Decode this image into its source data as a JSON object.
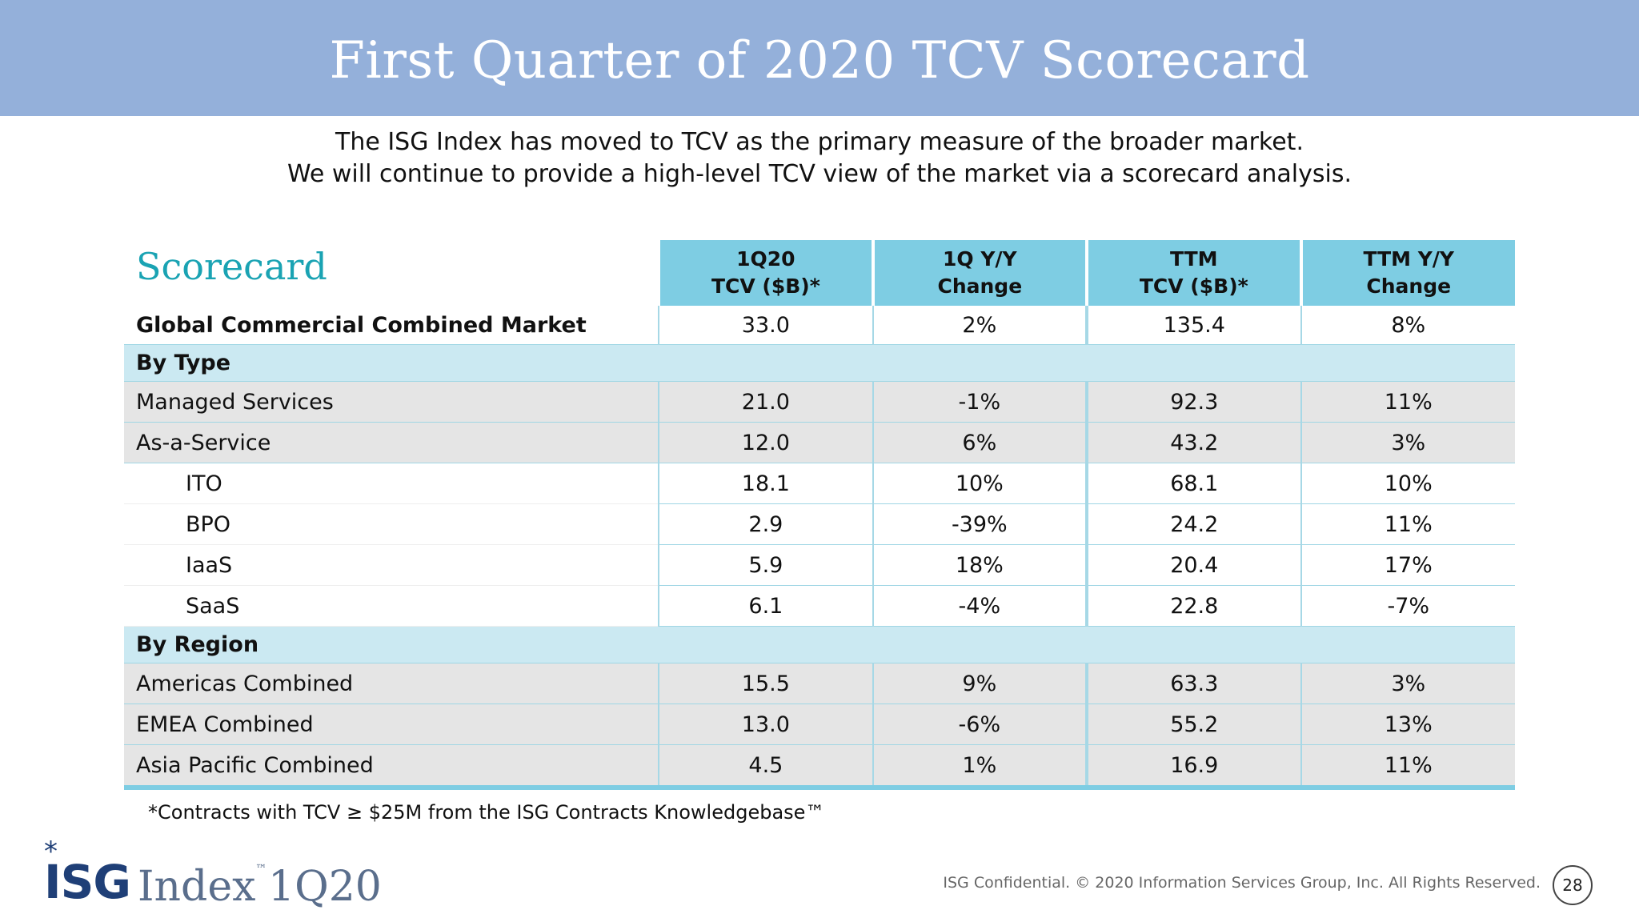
{
  "header": {
    "title": "First Quarter of 2020 TCV Scorecard"
  },
  "intro": {
    "line1": "The ISG Index has moved to TCV as the primary measure of the broader market.",
    "line2": "We will continue to provide a high-level TCV view of the market via a scorecard analysis."
  },
  "scorecard": {
    "title": "Scorecard",
    "columns": [
      {
        "line1": "1Q20",
        "line2": "TCV ($B)*"
      },
      {
        "line1": "1Q Y/Y",
        "line2": "Change"
      },
      {
        "line1": "TTM",
        "line2": "TCV ($B)*"
      },
      {
        "line1": "TTM Y/Y",
        "line2": "Change"
      }
    ],
    "total": {
      "label": "Global Commercial Combined Market",
      "values": [
        "33.0",
        "2%",
        "135.4",
        "8%"
      ]
    },
    "by_type": {
      "label": "By Type",
      "rows": [
        {
          "label": "Managed Services",
          "values": [
            "21.0",
            "-1%",
            "92.3",
            "11%"
          ]
        },
        {
          "label": "As-a-Service",
          "values": [
            "12.0",
            "6%",
            "43.2",
            "3%"
          ]
        },
        {
          "label": "ITO",
          "values": [
            "18.1",
            "10%",
            "68.1",
            "10%"
          ]
        },
        {
          "label": "BPO",
          "values": [
            "2.9",
            "-39%",
            "24.2",
            "11%"
          ]
        },
        {
          "label": "IaaS",
          "values": [
            "5.9",
            "18%",
            "20.4",
            "17%"
          ]
        },
        {
          "label": "SaaS",
          "values": [
            "6.1",
            "-4%",
            "22.8",
            "-7%"
          ]
        }
      ]
    },
    "by_region": {
      "label": "By Region",
      "rows": [
        {
          "label": "Americas Combined",
          "values": [
            "15.5",
            "9%",
            "63.3",
            "3%"
          ]
        },
        {
          "label": "EMEA Combined",
          "values": [
            "13.0",
            "-6%",
            "55.2",
            "13%"
          ]
        },
        {
          "label": "Asia Pacific Combined",
          "values": [
            "4.5",
            "1%",
            "16.9",
            "11%"
          ]
        }
      ]
    }
  },
  "footnote": "*Contracts with TCV ≥ $25M from the ISG Contracts Knowledgebase™",
  "footer": {
    "logo_star": "*",
    "logo_brand": "ISG",
    "logo_product": "Index",
    "logo_tm": "™",
    "logo_period": "1Q20",
    "confidential": "ISG Confidential. © 2020 Information Services Group, Inc.  All Rights Reserved.",
    "page_number": "28"
  },
  "colors": {
    "header_bg": "#94b0da",
    "scorecard_title": "#1aa3b3",
    "column_header_bg": "#7ecde3",
    "section_bg": "#cbe9f2",
    "grey_row_bg": "#e5e5e5",
    "logo_blue": "#1f3f77"
  }
}
